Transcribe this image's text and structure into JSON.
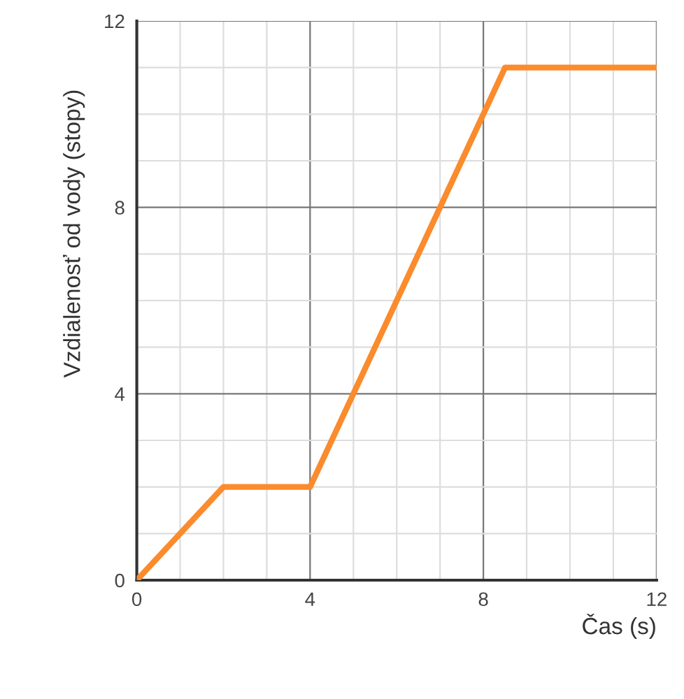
{
  "chart_data": {
    "type": "line",
    "xlabel": "Čas (s)",
    "ylabel": "Vzdialenosť od vody (stopy)",
    "x": [
      0,
      2,
      4,
      8.5,
      12
    ],
    "series": [
      {
        "color": "#fb8b2c",
        "values": [
          0,
          2,
          2,
          11,
          11
        ]
      }
    ],
    "xlim": [
      0,
      12
    ],
    "ylim": [
      0,
      12
    ],
    "xticks": [
      0,
      {
        "value": 1,
        "label": null
      },
      {
        "value": 2,
        "label": null
      },
      {
        "value": 3,
        "label": null
      },
      4,
      {
        "value": 5,
        "label": null
      },
      {
        "value": 6,
        "label": null
      },
      {
        "value": 7,
        "label": null
      },
      8,
      {
        "value": 9,
        "label": null
      },
      {
        "value": 10,
        "label": null
      },
      {
        "value": 11,
        "label": null
      },
      12
    ],
    "yticks": [
      0,
      {
        "value": 1,
        "label": null
      },
      {
        "value": 2,
        "label": null
      },
      {
        "value": 3,
        "label": null
      },
      4,
      {
        "value": 5,
        "label": null
      },
      {
        "value": 6,
        "label": null
      },
      {
        "value": 7,
        "label": null
      },
      8,
      {
        "value": 9,
        "label": null
      },
      {
        "value": 10,
        "label": null
      },
      {
        "value": 11,
        "label": null
      },
      12
    ],
    "grid": true,
    "marker": "none",
    "line_style": "solid",
    "legend": false
  }
}
